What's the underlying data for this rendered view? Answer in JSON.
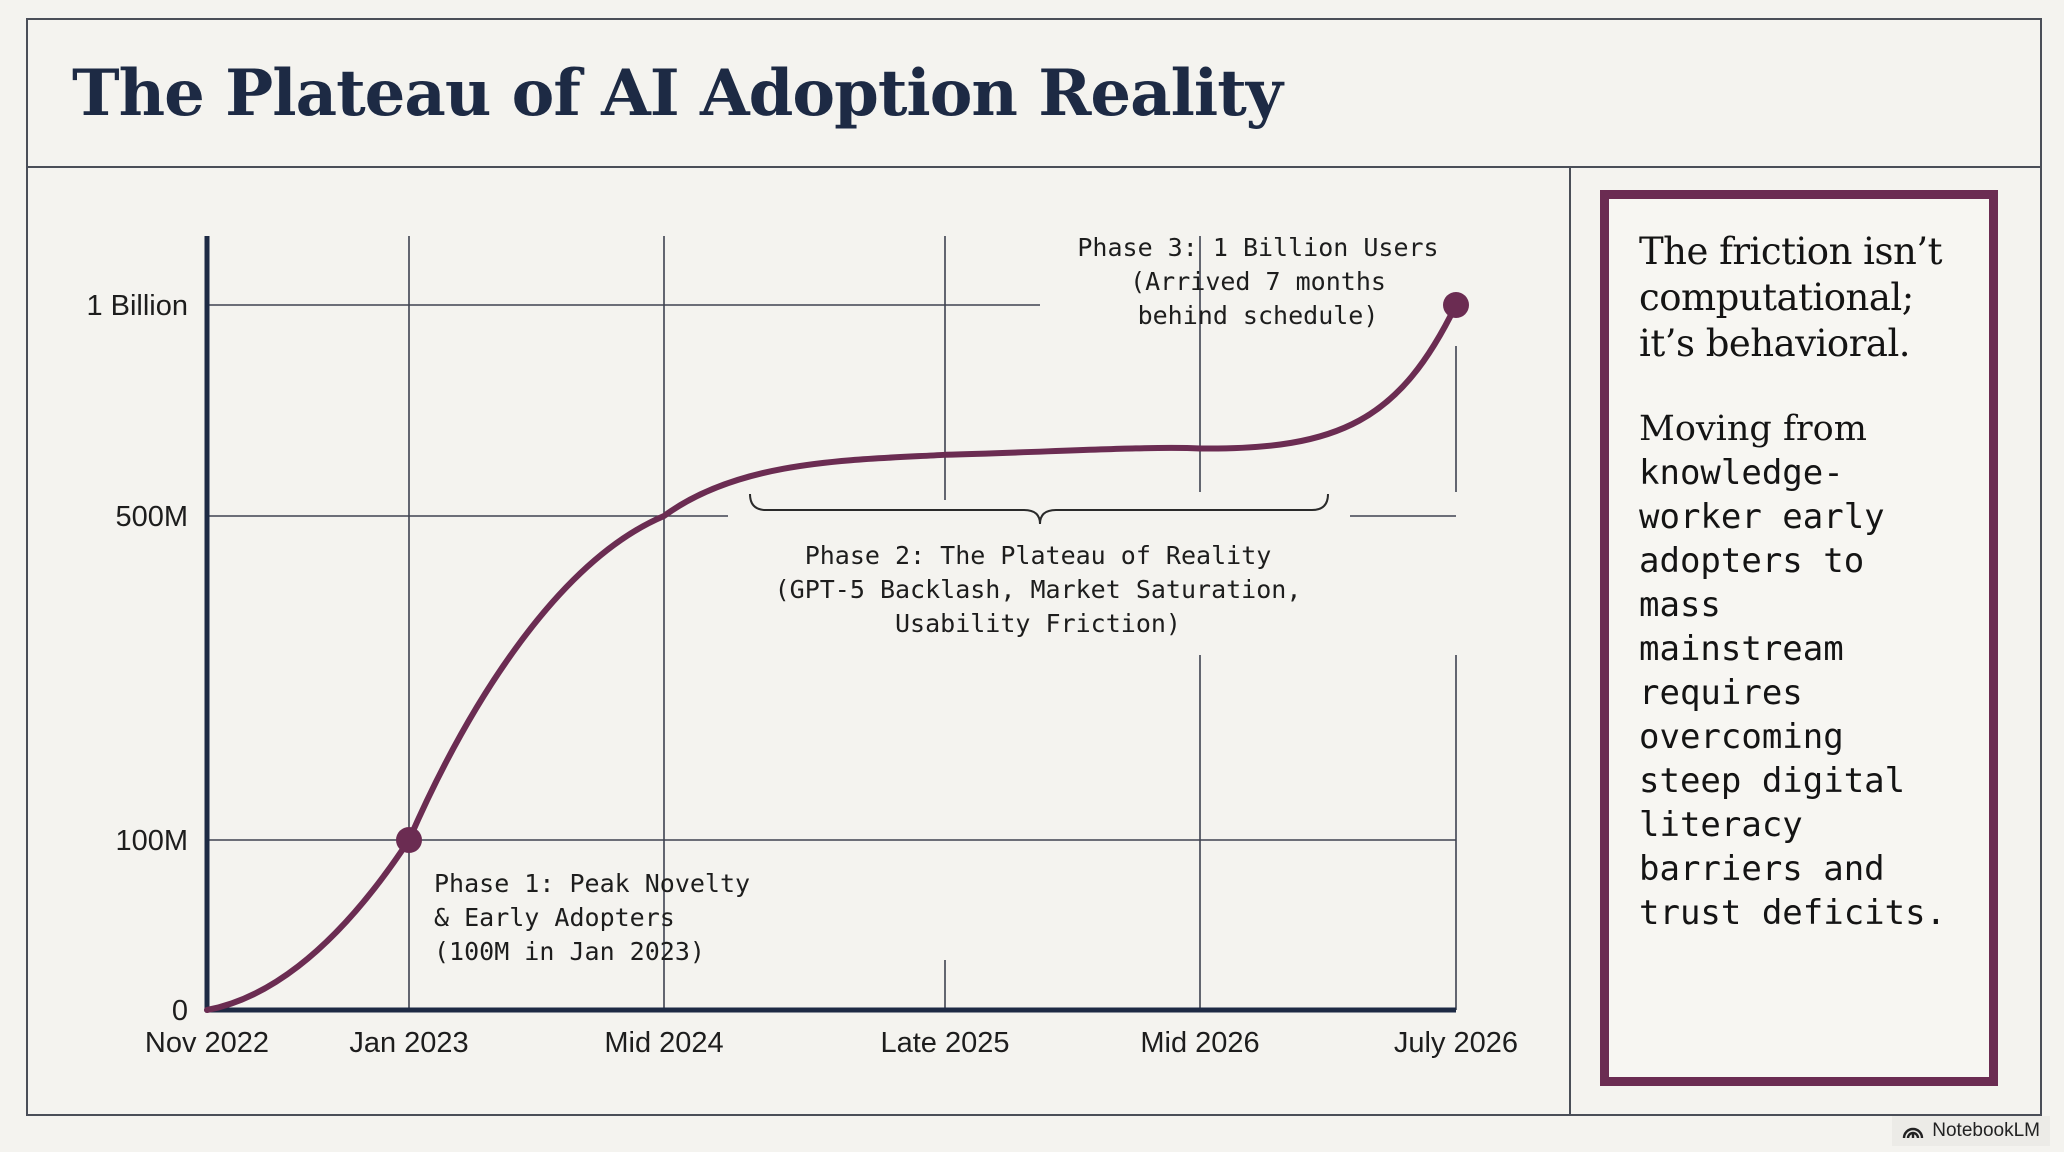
{
  "slide": {
    "title": "The Plateau of AI Adoption Reality"
  },
  "chart_data": {
    "type": "line",
    "title": "The Plateau of AI Adoption Reality",
    "xlabel": "",
    "ylabel": "",
    "x_ticks": [
      "Nov 2022",
      "Jan 2023",
      "Mid 2024",
      "Late 2025",
      "Mid 2026",
      "July 2026"
    ],
    "y_ticks": [
      "0",
      "100M",
      "500M",
      "1 Billion"
    ],
    "y_tick_values": [
      0,
      100000000,
      500000000,
      1000000000
    ],
    "scale_note": "piecewise y-axis: 0 → 100M → 500M → 1 Billion",
    "grid": true,
    "series": [
      {
        "x": [
          "Nov 2022",
          "Jan 2023",
          "Mid 2024",
          "Late 2025",
          "Mid 2026",
          "July 2026"
        ],
        "y": [
          0,
          100000000,
          500000000,
          645000000,
          660000000,
          1000000000
        ],
        "color": "#6b2c52"
      }
    ],
    "highlight_points": [
      {
        "x": "Jan 2023",
        "y": 100000000
      },
      {
        "x": "July 2026",
        "y": 1000000000
      }
    ],
    "annotations": {
      "phase1": [
        "Phase 1: Peak Novelty",
        "& Early Adopters",
        "(100M in Jan 2023)"
      ],
      "phase2": [
        "Phase 2: The Plateau of Reality",
        "(GPT-5 Backlash, Market Saturation,",
        "Usability Friction)"
      ],
      "phase3": [
        "Phase 3: 1 Billion Users",
        "(Arrived 7 months",
        "behind schedule)"
      ]
    }
  },
  "insight": {
    "headline": "The friction isn’t computational; it’s behavioral.",
    "body_lead": "Moving from",
    "body": "knowledge-\nworker early\nadopters to\nmass\nmainstream\nrequires\novercoming\nsteep digital\nliteracy\nbarriers and\ntrust deficits."
  },
  "watermark": {
    "label": "NotebookLM",
    "icon": "notebooklm-logo-icon"
  },
  "colors": {
    "accent": "#6b2c52",
    "title": "#1d2a44",
    "grid": "#3e4250",
    "background": "#f4f3ef"
  }
}
